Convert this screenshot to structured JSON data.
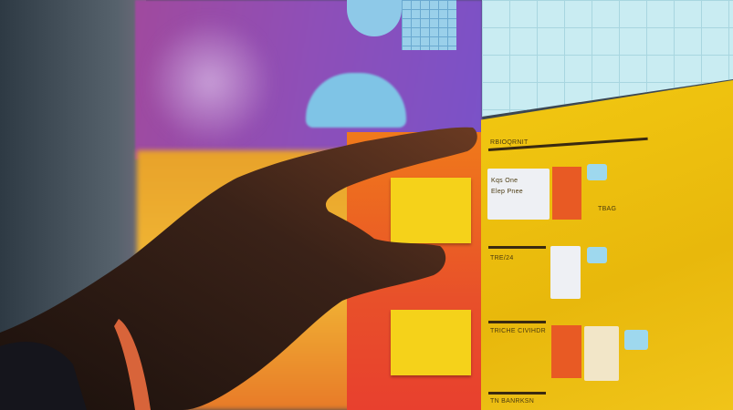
{
  "board": {
    "section_title": "RBIOQRNIT",
    "card1_line1": "Kqs One",
    "card1_line2": "Elep Pnee",
    "row1_value": "TBAG",
    "row2_label": "TRE/24",
    "row3_label": "TRICHE CIVIHDR",
    "row4_label": "TN BANRKSN"
  },
  "colors": {
    "wall": "#3c4752",
    "purple_panel": "#8e4fb8",
    "cyan_panel": "#c9ecf2",
    "yellow_panel": "#f2c811",
    "orange_column": "#e8502a",
    "hand": "#2a1a14"
  }
}
